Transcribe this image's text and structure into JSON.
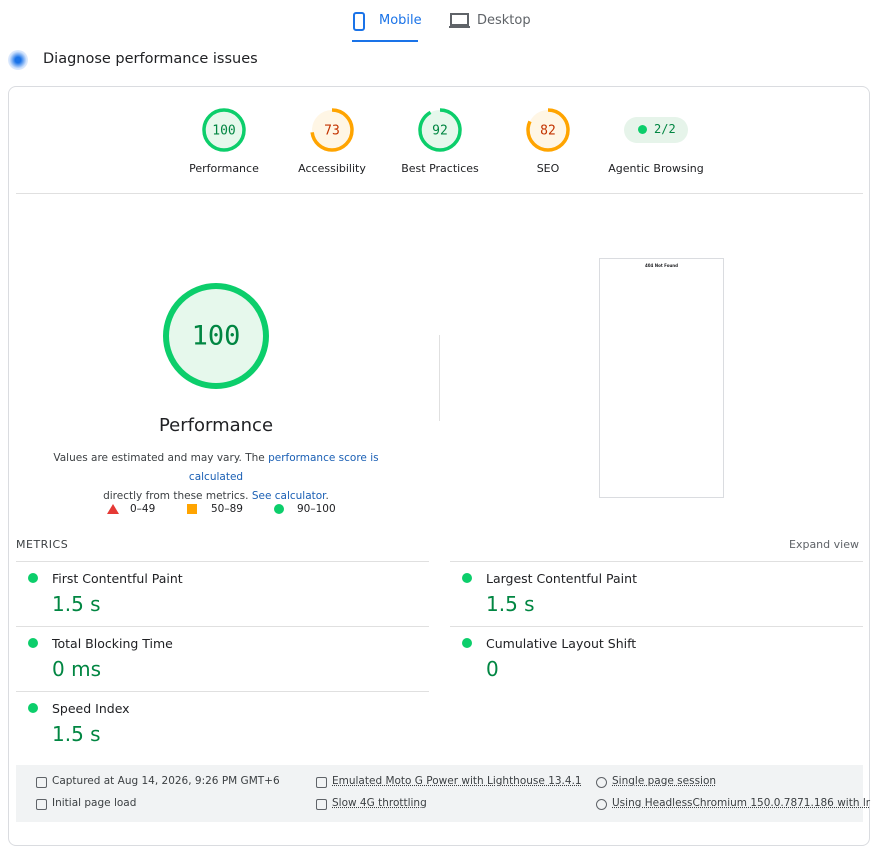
{
  "tabs": [
    "Mobile",
    "Desktop"
  ],
  "section_title": "Diagnose performance issues",
  "categories": [
    {
      "score": 100,
      "label": "Performance"
    },
    {
      "score": 73,
      "label": "Accessibility"
    },
    {
      "score": 92,
      "label": "Best Practices"
    },
    {
      "score": 82,
      "label": "SEO"
    }
  ],
  "agentic": {
    "score": "2/2",
    "label": "Agentic Browsing"
  },
  "main": {
    "score": 100,
    "title": "Performance",
    "description": [
      "Values are estimated and may vary. The ",
      "performance score is calculated",
      " directly from these metrics. ",
      "See calculator",
      "."
    ]
  },
  "legend": [
    "0–49",
    "50–89",
    "90–100"
  ],
  "screenshot_title": "404 Not Found",
  "metrics_label": "METRICS",
  "expand": "Expand view",
  "metrics": [
    {
      "name": "First Contentful Paint",
      "value": "1.5 s"
    },
    {
      "name": "Largest Contentful Paint",
      "value": "1.5 s"
    },
    {
      "name": "Total Blocking Time",
      "value": "0 ms"
    },
    {
      "name": "Cumulative Layout Shift",
      "value": "0"
    },
    {
      "name": "Speed Index",
      "value": "1.5 s"
    }
  ],
  "footer": [
    "Captured at Aug 14, 2026, 9:26 PM GMT+6",
    "Emulated Moto G Power with Lighthouse 13.4.1",
    "Single page session",
    "Initial page load",
    "Slow 4G throttling",
    "Using HeadlessChromium 150.0.7871.186 with lr"
  ]
}
